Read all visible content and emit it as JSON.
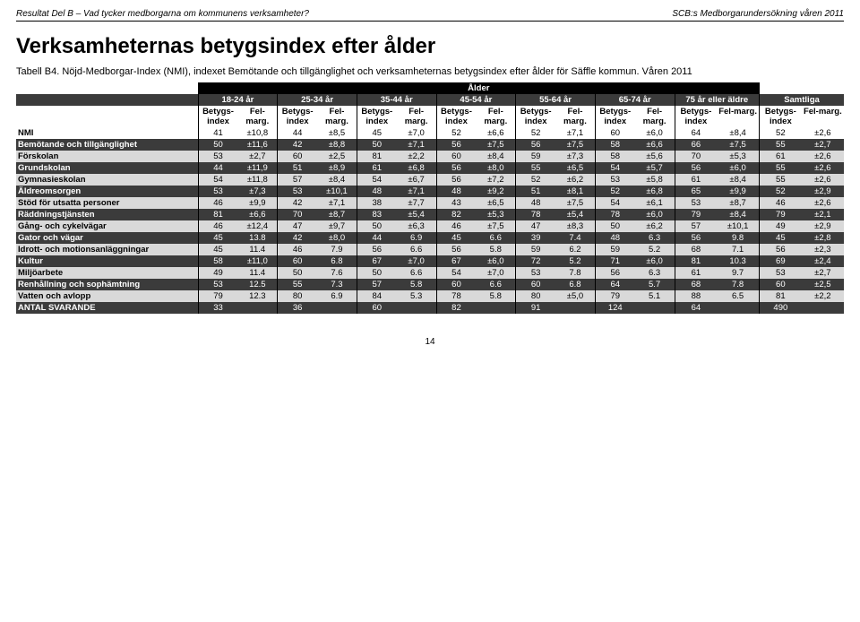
{
  "header": {
    "left": "Resultat Del B – Vad tycker medborgarna om kommunens verksamheter?",
    "right": "SCB:s Medborgarundersökning våren 2011"
  },
  "title": "Verksamheternas betygsindex efter ålder",
  "subtitle": "Tabell B4. Nöjd-Medborgar-Index (NMI), indexet Bemötande och tillgänglighet och verksamheternas betygsindex efter ålder för Säffle kommun. Våren 2011",
  "superHeader": "Ålder",
  "ageGroups": [
    "18-24 år",
    "25-34 år",
    "35-44 år",
    "45-54 år",
    "55-64 år",
    "65-74 år",
    "75 år eller äldre",
    "Samtliga"
  ],
  "subHeaders": [
    "Betygs-index",
    "Fel-marg."
  ],
  "rows": [
    {
      "label": "NMI",
      "band": "white",
      "cells": [
        "41",
        "±10,8",
        "44",
        "±8,5",
        "45",
        "±7,0",
        "52",
        "±6,6",
        "52",
        "±7,1",
        "60",
        "±6,0",
        "64",
        "±8,4",
        "52",
        "±2,6"
      ]
    },
    {
      "label": "Bemötande och tillgänglighet",
      "band": "dark",
      "cells": [
        "50",
        "±11,6",
        "42",
        "±8,8",
        "50",
        "±7,1",
        "56",
        "±7,5",
        "56",
        "±7,5",
        "58",
        "±6,6",
        "66",
        "±7,5",
        "55",
        "±2,7"
      ]
    },
    {
      "label": "Förskolan",
      "band": "light",
      "cells": [
        "53",
        "±2,7",
        "60",
        "±2,5",
        "81",
        "±2,2",
        "60",
        "±8,4",
        "59",
        "±7,3",
        "58",
        "±5,6",
        "70",
        "±5,3",
        "61",
        "±2,6"
      ]
    },
    {
      "label": "Grundskolan",
      "band": "dark",
      "cells": [
        "44",
        "±11,9",
        "51",
        "±8,9",
        "61",
        "±6,8",
        "56",
        "±8,0",
        "55",
        "±6,5",
        "54",
        "±5,7",
        "56",
        "±6,0",
        "55",
        "±2,6"
      ]
    },
    {
      "label": "Gymnasieskolan",
      "band": "light",
      "cells": [
        "54",
        "±11,8",
        "57",
        "±8,4",
        "54",
        "±6,7",
        "56",
        "±7,2",
        "52",
        "±6,2",
        "53",
        "±5,8",
        "61",
        "±8,4",
        "55",
        "±2,6"
      ]
    },
    {
      "label": "Äldreomsorgen",
      "band": "dark",
      "cells": [
        "53",
        "±7,3",
        "53",
        "±10,1",
        "48",
        "±7,1",
        "48",
        "±9,2",
        "51",
        "±8,1",
        "52",
        "±6,8",
        "65",
        "±9,9",
        "52",
        "±2,9"
      ]
    },
    {
      "label": "Stöd för utsatta personer",
      "band": "light",
      "cells": [
        "46",
        "±9,9",
        "42",
        "±7,1",
        "38",
        "±7,7",
        "43",
        "±6,5",
        "48",
        "±7,5",
        "54",
        "±6,1",
        "53",
        "±8,7",
        "46",
        "±2,6"
      ]
    },
    {
      "label": "Räddningstjänsten",
      "band": "dark",
      "cells": [
        "81",
        "±6,6",
        "70",
        "±8,7",
        "83",
        "±5,4",
        "82",
        "±5,3",
        "78",
        "±5,4",
        "78",
        "±6,0",
        "79",
        "±8,4",
        "79",
        "±2,1"
      ]
    },
    {
      "label": "Gång- och cykelvägar",
      "band": "light",
      "cells": [
        "46",
        "±12,4",
        "47",
        "±9,7",
        "50",
        "±6,3",
        "46",
        "±7,5",
        "47",
        "±8,3",
        "50",
        "±6,2",
        "57",
        "±10,1",
        "49",
        "±2,9"
      ]
    },
    {
      "label": "Gator och vägar",
      "band": "dark",
      "cells": [
        "45",
        "13.8",
        "42",
        "±8,0",
        "44",
        "6.9",
        "45",
        "6.6",
        "39",
        "7.4",
        "48",
        "6.3",
        "56",
        "9.8",
        "45",
        "±2,8"
      ]
    },
    {
      "label": "Idrott- och motionsanläggningar",
      "band": "light",
      "cells": [
        "45",
        "11.4",
        "46",
        "7.9",
        "56",
        "6.6",
        "56",
        "5.8",
        "59",
        "6.2",
        "59",
        "5.2",
        "68",
        "7.1",
        "56",
        "±2,3"
      ]
    },
    {
      "label": "Kultur",
      "band": "dark",
      "cells": [
        "58",
        "±11,0",
        "60",
        "6.8",
        "67",
        "±7,0",
        "67",
        "±6,0",
        "72",
        "5.2",
        "71",
        "±6,0",
        "81",
        "10.3",
        "69",
        "±2,4"
      ]
    },
    {
      "label": "Miljöarbete",
      "band": "light",
      "cells": [
        "49",
        "11.4",
        "50",
        "7.6",
        "50",
        "6.6",
        "54",
        "±7,0",
        "53",
        "7.8",
        "56",
        "6.3",
        "61",
        "9.7",
        "53",
        "±2,7"
      ]
    },
    {
      "label": "Renhållning och sophämtning",
      "band": "dark",
      "cells": [
        "53",
        "12.5",
        "55",
        "7.3",
        "57",
        "5.8",
        "60",
        "6.6",
        "60",
        "6.8",
        "64",
        "5.7",
        "68",
        "7.8",
        "60",
        "±2,5"
      ]
    },
    {
      "label": "Vatten och avlopp",
      "band": "light",
      "cells": [
        "79",
        "12.3",
        "80",
        "6.9",
        "84",
        "5.3",
        "78",
        "5.8",
        "80",
        "±5,0",
        "79",
        "5.1",
        "88",
        "6.5",
        "81",
        "±2,2"
      ]
    },
    {
      "label": "ANTAL SVARANDE",
      "band": "dark",
      "cells": [
        "33",
        "",
        "36",
        "",
        "60",
        "",
        "82",
        "",
        "91",
        "",
        "124",
        "",
        "64",
        "",
        "490",
        ""
      ]
    }
  ],
  "pageNumber": "14"
}
